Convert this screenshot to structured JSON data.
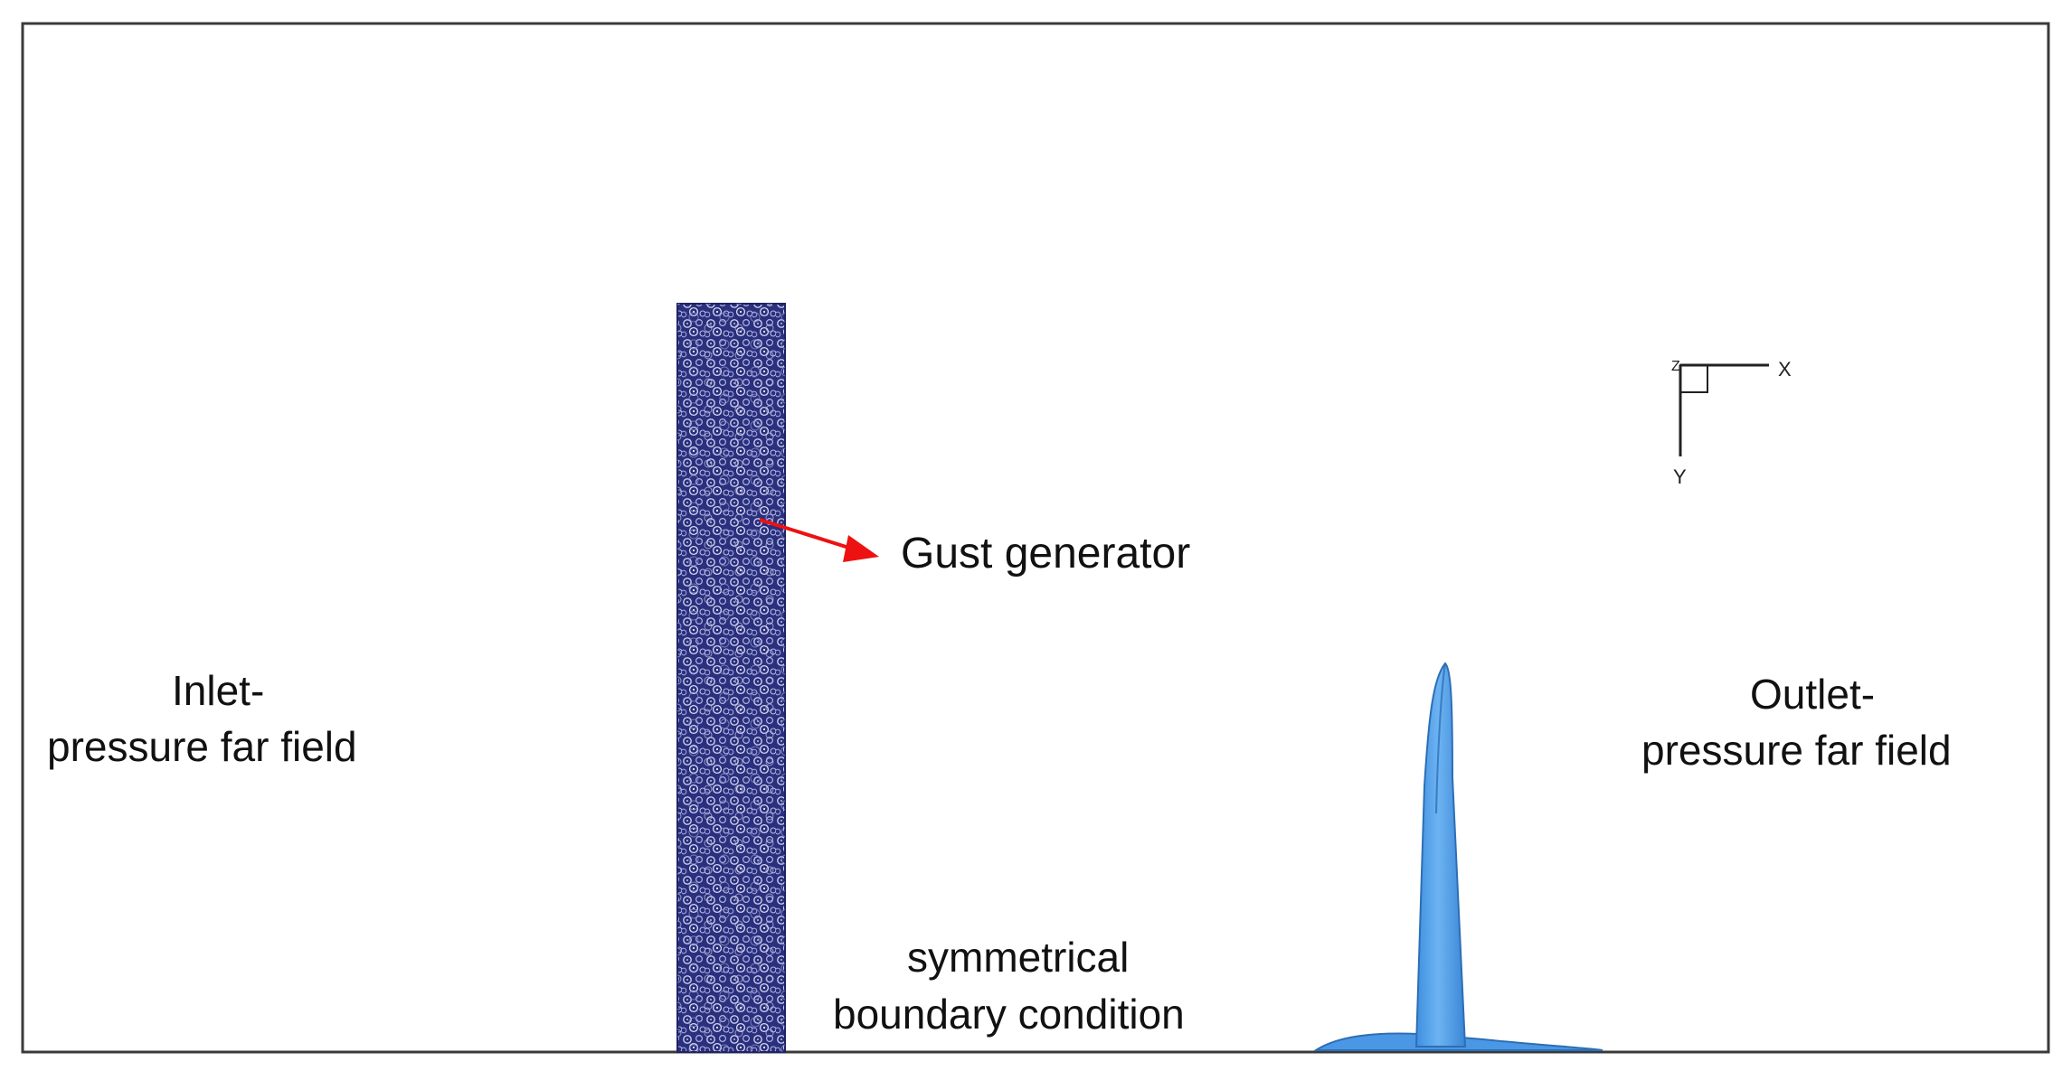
{
  "labels": {
    "gust_generator": "Gust generator",
    "inlet_line1": "Inlet-",
    "inlet_line2": "pressure far field",
    "outlet_line1": "Outlet-",
    "outlet_line2": "pressure far field",
    "symmetry_line1": "symmetrical",
    "symmetry_line2": "boundary condition"
  },
  "triad": {
    "x_label": "X",
    "y_label": "Y",
    "z_label": "Z"
  },
  "colors": {
    "frame": "#3a3a3a",
    "gust_mesh": "#2a2f7e",
    "mesh_cell": "#c9cde8",
    "arrow": "#ee1111",
    "airfoil": "#5aa7ee",
    "airfoil_edge": "#2c6fb5"
  }
}
